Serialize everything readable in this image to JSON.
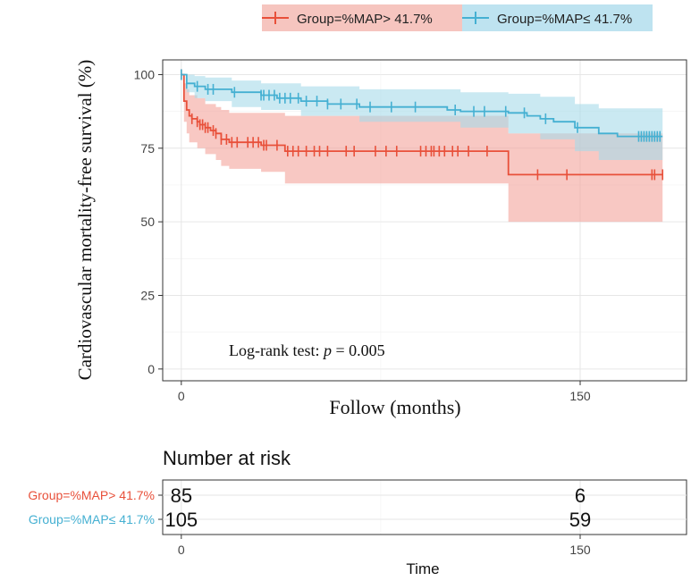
{
  "chart_data": {
    "type": "km_survival",
    "title": "",
    "xlabel": "Follow (months)",
    "ylabel": "Cardiovascular mortality-free survival (%)",
    "xlim": [
      -7,
      190
    ],
    "ylim": [
      -4,
      105
    ],
    "x_ticks": [
      0,
      150
    ],
    "y_ticks": [
      0,
      25,
      50,
      75,
      100
    ],
    "annotation": {
      "prefix": "Log-rank test: ",
      "p_symbol": "p",
      "suffix": " = 0.005"
    },
    "grid": true,
    "legend_position": "top",
    "series": [
      {
        "name": "Group=%MAP> 41.7%",
        "color": "#E8503A",
        "band_color": "#F4A49B",
        "steps": [
          [
            0,
            100
          ],
          [
            1,
            91
          ],
          [
            2,
            88
          ],
          [
            3,
            86
          ],
          [
            4,
            85
          ],
          [
            6,
            84
          ],
          [
            7,
            83
          ],
          [
            9,
            82
          ],
          [
            11,
            81
          ],
          [
            13,
            80
          ],
          [
            15,
            78
          ],
          [
            18,
            77
          ],
          [
            30,
            76
          ],
          [
            39,
            74
          ],
          [
            123,
            74
          ],
          [
            123,
            66
          ],
          [
            181,
            66
          ]
        ],
        "upper": [
          [
            0,
            100
          ],
          [
            1,
            97
          ],
          [
            2,
            95
          ],
          [
            3,
            93
          ],
          [
            6,
            92
          ],
          [
            9,
            90
          ],
          [
            13,
            89
          ],
          [
            15,
            88
          ],
          [
            18,
            87
          ],
          [
            39,
            86
          ],
          [
            123,
            86
          ],
          [
            123,
            80
          ],
          [
            181,
            80
          ]
        ],
        "lower": [
          [
            0,
            100
          ],
          [
            1,
            84
          ],
          [
            2,
            80
          ],
          [
            3,
            77
          ],
          [
            6,
            75
          ],
          [
            9,
            73
          ],
          [
            13,
            71
          ],
          [
            15,
            69
          ],
          [
            18,
            68
          ],
          [
            30,
            67
          ],
          [
            39,
            63
          ],
          [
            123,
            63
          ],
          [
            123,
            50
          ],
          [
            181,
            50
          ]
        ],
        "censor": [
          0,
          4,
          6,
          7,
          8,
          9,
          10,
          12,
          13,
          15,
          17,
          19,
          21,
          25,
          27,
          29,
          31,
          32,
          36,
          40,
          42,
          44,
          47,
          50,
          52,
          55,
          62,
          65,
          73,
          77,
          81,
          90,
          92,
          94,
          95,
          97,
          99,
          102,
          104,
          108,
          115,
          134,
          145,
          177,
          178,
          181
        ],
        "risk": [
          85,
          6
        ]
      },
      {
        "name": "Group=%MAP≤ 41.7%",
        "color": "#45B0D2",
        "band_color": "#A6DBEA",
        "steps": [
          [
            0,
            100
          ],
          [
            2,
            97
          ],
          [
            5,
            96
          ],
          [
            9,
            95
          ],
          [
            19,
            94
          ],
          [
            30,
            93
          ],
          [
            36,
            92
          ],
          [
            45,
            91
          ],
          [
            55,
            90
          ],
          [
            67,
            89
          ],
          [
            100,
            88
          ],
          [
            105,
            87.5
          ],
          [
            123,
            87
          ],
          [
            130,
            86
          ],
          [
            135,
            85
          ],
          [
            140,
            84
          ],
          [
            148,
            82
          ],
          [
            157,
            80
          ],
          [
            164,
            79
          ],
          [
            181,
            79
          ]
        ],
        "upper": [
          [
            0,
            100
          ],
          [
            2,
            100
          ],
          [
            5,
            99.5
          ],
          [
            9,
            99
          ],
          [
            19,
            98
          ],
          [
            30,
            97
          ],
          [
            45,
            96
          ],
          [
            67,
            95
          ],
          [
            105,
            94
          ],
          [
            123,
            93.5
          ],
          [
            135,
            92.5
          ],
          [
            148,
            90
          ],
          [
            157,
            88.5
          ],
          [
            181,
            88
          ]
        ],
        "lower": [
          [
            0,
            100
          ],
          [
            2,
            94
          ],
          [
            5,
            92
          ],
          [
            9,
            91
          ],
          [
            19,
            89
          ],
          [
            30,
            88
          ],
          [
            45,
            86
          ],
          [
            67,
            84
          ],
          [
            105,
            82
          ],
          [
            123,
            80
          ],
          [
            135,
            78
          ],
          [
            148,
            74
          ],
          [
            157,
            71
          ],
          [
            181,
            70
          ]
        ],
        "censor": [
          0,
          2,
          6,
          10,
          12,
          20,
          30,
          31,
          33,
          35,
          37,
          39,
          41,
          44,
          47,
          51,
          55,
          60,
          66,
          71,
          79,
          88,
          103,
          110,
          114,
          122,
          129,
          137,
          149,
          172,
          173,
          174,
          175,
          176,
          177,
          178,
          179,
          180
        ],
        "risk": [
          105,
          59
        ]
      }
    ],
    "risk_table": {
      "title": "Number at risk",
      "xlabel": "Time",
      "x_ticks": [
        0,
        150
      ]
    }
  }
}
